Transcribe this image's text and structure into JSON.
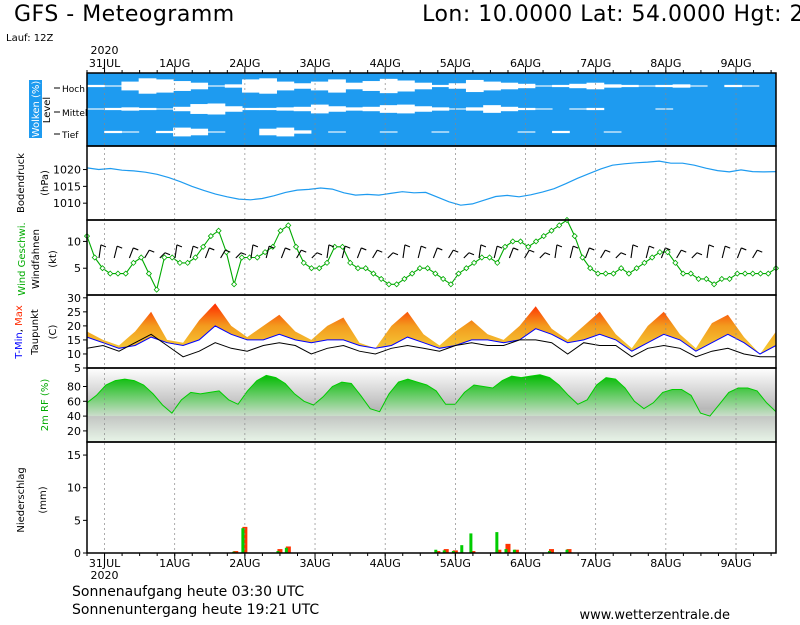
{
  "header": {
    "title": "GFS - Meteogramm",
    "coords": "Lon: 10.0000 Lat: 54.0000 Hgt: 2",
    "run": "Lauf: 12Z"
  },
  "footer": {
    "sunrise": "Sonnenaufgang heute 03:30 UTC",
    "sunset": "Sonnenuntergang heute 19:21 UTC",
    "credit": "www.wetterzentrale.de"
  },
  "colors": {
    "cloud": "#1e9bf0",
    "pressure": "#1e9bf0",
    "wind": "#00aa00",
    "tmin": "#0000ff",
    "tmax": "#ff2a00",
    "dewpoint": "#000000",
    "rh": "#00cc00",
    "precip_conv": "#ff3300",
    "precip_large": "#00cc00"
  },
  "chart_data": {
    "type": "meteogram",
    "time_axis": {
      "year_label": "2020",
      "days": [
        "31JUL",
        "1AUG",
        "2AUG",
        "3AUG",
        "4AUG",
        "5AUG",
        "6AUG",
        "7AUG",
        "8AUG",
        "9AUG"
      ],
      "range_days": [
        -0.25,
        9.57
      ]
    },
    "panels": [
      {
        "id": "clouds",
        "ylabel": "Wolken (%)",
        "side_label": "Level",
        "levels": [
          "Hoch",
          "Mittel",
          "Tief"
        ],
        "high_cover": [
          90,
          95,
          60,
          30,
          40,
          55,
          70,
          95,
          85,
          40,
          30,
          60,
          75,
          60,
          40,
          70,
          55,
          35,
          50,
          70,
          90,
          75,
          45,
          60,
          70,
          80,
          95,
          90,
          80,
          70,
          85,
          90,
          95,
          90,
          85,
          95,
          100,
          90,
          95,
          100
        ],
        "mid_cover": [
          95,
          90,
          85,
          90,
          95,
          80,
          55,
          50,
          75,
          90,
          90,
          85,
          80,
          60,
          75,
          85,
          80,
          65,
          60,
          75,
          85,
          95,
          85,
          65,
          80,
          90,
          95,
          100,
          95,
          90,
          100,
          100,
          100,
          95,
          100,
          100,
          100,
          100,
          100,
          100
        ],
        "low_cover": [
          100,
          90,
          95,
          100,
          90,
          60,
          70,
          95,
          100,
          100,
          70,
          60,
          85,
          100,
          95,
          100,
          100,
          95,
          100,
          100,
          95,
          100,
          100,
          100,
          100,
          95,
          100,
          90,
          100,
          100,
          95,
          100,
          100,
          100,
          100,
          100,
          100,
          100,
          100,
          100
        ]
      },
      {
        "id": "pressure",
        "ylabel": "Bodendruck",
        "unit": "(hPa)",
        "ylim": [
          1005,
          1027
        ],
        "ticks": [
          1010,
          1015,
          1020
        ],
        "values": [
          1020.5,
          1020.0,
          1020.3,
          1019.8,
          1019.6,
          1019.2,
          1018.6,
          1017.6,
          1016.4,
          1015.0,
          1013.8,
          1012.7,
          1011.9,
          1011.2,
          1011.0,
          1011.4,
          1012.2,
          1013.2,
          1013.9,
          1014.1,
          1014.5,
          1014.2,
          1013.1,
          1012.4,
          1012.6,
          1012.4,
          1012.9,
          1013.4,
          1013.1,
          1013.2,
          1011.8,
          1010.4,
          1009.4,
          1009.8,
          1010.9,
          1012.0,
          1012.3,
          1011.9,
          1012.5,
          1013.3,
          1014.3,
          1015.8,
          1017.4,
          1018.8,
          1020.2,
          1021.3,
          1021.7,
          1022.0,
          1022.2,
          1022.5,
          1021.9,
          1021.9,
          1021.3,
          1020.4,
          1019.7,
          1019.3,
          1019.9,
          1019.4,
          1019.3,
          1019.4
        ]
      },
      {
        "id": "wind",
        "ylabel": "Wind Geschwi.",
        "ylabel2": "Windfahnen",
        "unit": "(kt)",
        "ylim": [
          0,
          14
        ],
        "ticks": [
          5,
          10
        ],
        "values": [
          11,
          7,
          5,
          4,
          4,
          4,
          6,
          7,
          4,
          1,
          7,
          7,
          6,
          6,
          7,
          9,
          11,
          12,
          8,
          2,
          7,
          7,
          7,
          8,
          9,
          12,
          13,
          9,
          6,
          5,
          5,
          6,
          9,
          9,
          6,
          5,
          5,
          4,
          3,
          2,
          2,
          3,
          4,
          5,
          5,
          4,
          3,
          2,
          4,
          5,
          6,
          7,
          7,
          6,
          9,
          10,
          10,
          9,
          10,
          11,
          12,
          13,
          14,
          11,
          7,
          5,
          4,
          4,
          4,
          5,
          4,
          5,
          6,
          7,
          8,
          8,
          6,
          4,
          4,
          3,
          3,
          2,
          3,
          3,
          4,
          4,
          4,
          4,
          4,
          5
        ]
      },
      {
        "id": "temperature",
        "ylabel": "T-Min, Max",
        "ylabel2": "Taupunkt",
        "unit": "(C)",
        "ylim": [
          5,
          31
        ],
        "ticks": [
          5,
          10,
          15,
          20,
          25,
          30
        ],
        "tmax": [
          18,
          15,
          13,
          18,
          25,
          15,
          14,
          22,
          28,
          20,
          16,
          20,
          24,
          18,
          15,
          20,
          23,
          14,
          12,
          20,
          25,
          17,
          13,
          18,
          22,
          17,
          15,
          20,
          27,
          19,
          15,
          20,
          25,
          17,
          12,
          20,
          25,
          17,
          12,
          21,
          24,
          16,
          10,
          18
        ],
        "tmin": [
          16,
          14,
          12,
          13,
          16,
          14,
          13,
          15,
          20,
          17,
          15,
          15,
          17,
          15,
          14,
          15,
          15,
          13,
          12,
          13,
          16,
          14,
          12,
          13,
          15,
          15,
          14,
          15,
          19,
          17,
          14,
          15,
          17,
          15,
          11,
          14,
          17,
          15,
          11,
          14,
          17,
          14,
          10,
          13
        ],
        "dewpoint": [
          12,
          13,
          11,
          14,
          17,
          13,
          9,
          11,
          14,
          12,
          11,
          13,
          14,
          13,
          10,
          12,
          13,
          11,
          10,
          12,
          13,
          12,
          11,
          13,
          14,
          13,
          13,
          15,
          15,
          14,
          10,
          14,
          13,
          13,
          9,
          12,
          13,
          12,
          9,
          11,
          12,
          10,
          9,
          9
        ]
      },
      {
        "id": "rh",
        "ylabel": "2m RF (%)",
        "ylim": [
          5,
          105
        ],
        "ticks": [
          20,
          40,
          60,
          80
        ],
        "values": [
          58,
          68,
          82,
          88,
          90,
          88,
          82,
          70,
          55,
          44,
          62,
          72,
          70,
          72,
          74,
          62,
          56,
          74,
          88,
          95,
          92,
          84,
          70,
          60,
          55,
          66,
          80,
          86,
          84,
          68,
          50,
          46,
          70,
          86,
          90,
          86,
          82,
          74,
          56,
          56,
          72,
          82,
          80,
          78,
          88,
          94,
          92,
          94,
          96,
          92,
          82,
          68,
          56,
          62,
          82,
          92,
          90,
          78,
          60,
          50,
          58,
          72,
          76,
          76,
          68,
          44,
          40,
          56,
          72,
          78,
          78,
          74,
          58,
          46
        ]
      },
      {
        "id": "precip",
        "ylabel": "Niederschlag",
        "unit": "(mm)",
        "ylim": [
          0,
          17
        ],
        "ticks": [
          0,
          5,
          10,
          15
        ],
        "bars": [
          {
            "t": 2.0,
            "conv": 4.0,
            "large": 3.8
          },
          {
            "t": 1.87,
            "conv": 0.3,
            "large": 0.2
          },
          {
            "t": 2.5,
            "conv": 0.6,
            "large": 0.3
          },
          {
            "t": 2.62,
            "conv": 1.0,
            "large": 0.8
          },
          {
            "t": 4.75,
            "conv": 0.3,
            "large": 0.5
          },
          {
            "t": 4.87,
            "conv": 0.6,
            "large": 0.4
          },
          {
            "t": 5.0,
            "conv": 0.4,
            "large": 0.3
          },
          {
            "t": 5.12,
            "conv": 0.0,
            "large": 1.2
          },
          {
            "t": 5.25,
            "conv": 0.3,
            "large": 3.0
          },
          {
            "t": 5.62,
            "conv": 0.5,
            "large": 3.2
          },
          {
            "t": 5.75,
            "conv": 1.4,
            "large": 0.6
          },
          {
            "t": 5.87,
            "conv": 0.5,
            "large": 0.5
          },
          {
            "t": 6.37,
            "conv": 0.6,
            "large": 0.3
          },
          {
            "t": 6.62,
            "conv": 0.6,
            "large": 0.5
          }
        ]
      }
    ]
  }
}
